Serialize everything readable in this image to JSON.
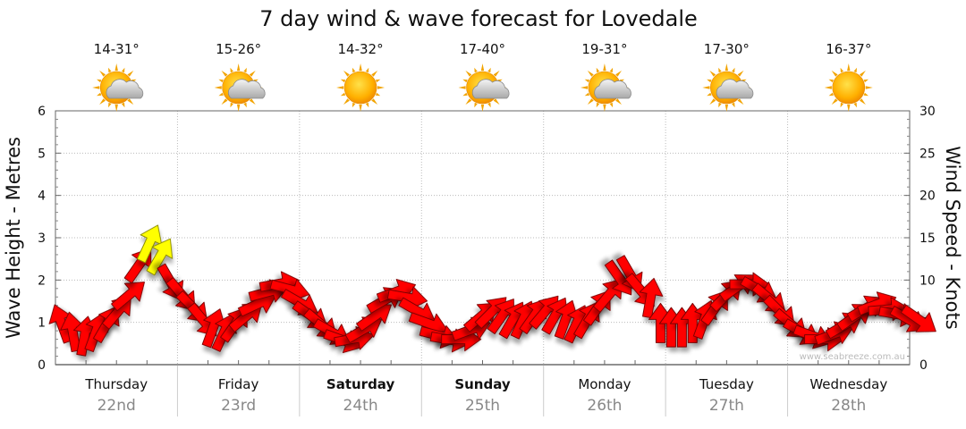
{
  "chart_data": {
    "type": "line",
    "title": "7 day wind & wave forecast for Lovedale",
    "ylabel_left": "Wave Height - Metres",
    "ylabel_right": "Wind Speed - Knots",
    "ylim_left": [
      0,
      6
    ],
    "ylim_right": [
      0,
      30
    ],
    "yticks_left": [
      "0",
      "1",
      "2",
      "3",
      "4",
      "5",
      "6"
    ],
    "yticks_right": [
      "0",
      "5",
      "10",
      "15",
      "20",
      "25",
      "30"
    ],
    "grid": true,
    "watermark": "www.seabreeze.com.au",
    "days": [
      {
        "name": "Thursday",
        "date": "22nd",
        "temp": "14-31°",
        "icon": "partly-cloudy-icon",
        "bold": false
      },
      {
        "name": "Friday",
        "date": "23rd",
        "temp": "15-26°",
        "icon": "partly-cloudy-icon",
        "bold": false
      },
      {
        "name": "Saturday",
        "date": "24th",
        "temp": "14-32°",
        "icon": "sunny-icon",
        "bold": true
      },
      {
        "name": "Sunday",
        "date": "25th",
        "temp": "17-40°",
        "icon": "partly-cloudy-icon",
        "bold": true
      },
      {
        "name": "Monday",
        "date": "26th",
        "temp": "19-31°",
        "icon": "partly-cloudy-icon",
        "bold": false
      },
      {
        "name": "Tuesday",
        "date": "27th",
        "temp": "17-30°",
        "icon": "partly-cloudy-icon",
        "bold": false
      },
      {
        "name": "Wednesday",
        "date": "28th",
        "temp": "16-37°",
        "icon": "sunny-icon",
        "bold": false
      }
    ],
    "series": [
      {
        "type": "wind-arrows",
        "unit": "knots",
        "points": [
          {
            "t": 0.0,
            "v": 4.5,
            "dir": 160
          },
          {
            "t": 0.25,
            "v": 3.5,
            "dir": 170
          },
          {
            "t": 0.5,
            "v": 3.0,
            "dir": 190
          },
          {
            "t": 0.75,
            "v": 3.5,
            "dir": 200
          },
          {
            "t": 1.0,
            "v": 4.5,
            "dir": 210
          },
          {
            "t": 1.25,
            "v": 6.0,
            "dir": 220
          },
          {
            "t": 1.5,
            "v": 8.0,
            "dir": 230
          },
          {
            "t": 1.75,
            "v": 11.5,
            "dir": 215
          },
          {
            "t": 2.0,
            "v": 14.0,
            "dir": 205,
            "highlight": true
          },
          {
            "t": 2.25,
            "v": 12.5,
            "dir": 210,
            "highlight": true
          },
          {
            "t": 2.5,
            "v": 10.0,
            "dir": 330
          },
          {
            "t": 2.75,
            "v": 8.5,
            "dir": 320
          },
          {
            "t": 3.0,
            "v": 7.0,
            "dir": 315
          },
          {
            "t": 3.25,
            "v": 5.5,
            "dir": 320
          },
          {
            "t": 3.5,
            "v": 4.0,
            "dir": 200
          },
          {
            "t": 3.75,
            "v": 3.5,
            "dir": 205
          },
          {
            "t": 4.0,
            "v": 4.5,
            "dir": 215
          },
          {
            "t": 4.25,
            "v": 5.5,
            "dir": 230
          },
          {
            "t": 4.5,
            "v": 7.0,
            "dir": 245
          },
          {
            "t": 4.75,
            "v": 8.5,
            "dir": 255
          },
          {
            "t": 5.0,
            "v": 9.5,
            "dir": 260
          },
          {
            "t": 5.25,
            "v": 9.0,
            "dir": 285
          },
          {
            "t": 5.5,
            "v": 7.5,
            "dir": 300
          },
          {
            "t": 5.75,
            "v": 6.0,
            "dir": 305
          },
          {
            "t": 6.0,
            "v": 5.0,
            "dir": 310
          },
          {
            "t": 6.25,
            "v": 4.0,
            "dir": 300
          },
          {
            "t": 6.5,
            "v": 3.0,
            "dir": 290
          },
          {
            "t": 6.75,
            "v": 3.0,
            "dir": 260
          },
          {
            "t": 7.0,
            "v": 4.0,
            "dir": 240
          },
          {
            "t": 7.25,
            "v": 5.5,
            "dir": 235
          },
          {
            "t": 7.5,
            "v": 7.5,
            "dir": 240
          },
          {
            "t": 7.75,
            "v": 8.5,
            "dir": 250
          },
          {
            "t": 8.0,
            "v": 8.0,
            "dir": 280
          },
          {
            "t": 8.25,
            "v": 6.5,
            "dir": 300
          },
          {
            "t": 8.5,
            "v": 5.0,
            "dir": 290
          },
          {
            "t": 8.75,
            "v": 3.5,
            "dir": 285
          },
          {
            "t": 9.0,
            "v": 3.0,
            "dir": 280
          },
          {
            "t": 9.25,
            "v": 3.0,
            "dir": 270
          },
          {
            "t": 9.5,
            "v": 4.0,
            "dir": 250
          },
          {
            "t": 9.75,
            "v": 5.5,
            "dir": 230
          },
          {
            "t": 10.0,
            "v": 6.0,
            "dir": 225
          },
          {
            "t": 10.25,
            "v": 5.5,
            "dir": 215
          },
          {
            "t": 10.5,
            "v": 5.0,
            "dir": 210
          },
          {
            "t": 10.75,
            "v": 5.0,
            "dir": 205
          },
          {
            "t": 11.0,
            "v": 5.5,
            "dir": 215
          },
          {
            "t": 11.25,
            "v": 6.0,
            "dir": 220
          },
          {
            "t": 11.5,
            "v": 5.5,
            "dir": 210
          },
          {
            "t": 11.75,
            "v": 5.0,
            "dir": 200
          },
          {
            "t": 12.0,
            "v": 4.5,
            "dir": 205
          },
          {
            "t": 12.25,
            "v": 5.0,
            "dir": 210
          },
          {
            "t": 12.5,
            "v": 6.5,
            "dir": 215
          },
          {
            "t": 12.75,
            "v": 8.0,
            "dir": 220
          },
          {
            "t": 13.0,
            "v": 10.5,
            "dir": 325
          },
          {
            "t": 13.25,
            "v": 11.0,
            "dir": 330
          },
          {
            "t": 13.5,
            "v": 9.0,
            "dir": 320
          },
          {
            "t": 13.75,
            "v": 7.5,
            "dir": 190
          },
          {
            "t": 14.0,
            "v": 4.5,
            "dir": 180
          },
          {
            "t": 14.25,
            "v": 4.0,
            "dir": 180
          },
          {
            "t": 14.5,
            "v": 4.0,
            "dir": 180
          },
          {
            "t": 14.75,
            "v": 4.5,
            "dir": 180
          },
          {
            "t": 15.0,
            "v": 5.0,
            "dir": 200
          },
          {
            "t": 15.25,
            "v": 6.5,
            "dir": 215
          },
          {
            "t": 15.5,
            "v": 8.0,
            "dir": 225
          },
          {
            "t": 15.75,
            "v": 9.0,
            "dir": 235
          },
          {
            "t": 16.0,
            "v": 9.5,
            "dir": 270
          },
          {
            "t": 16.25,
            "v": 9.0,
            "dir": 300
          },
          {
            "t": 16.5,
            "v": 8.0,
            "dir": 310
          },
          {
            "t": 16.75,
            "v": 6.5,
            "dir": 315
          },
          {
            "t": 17.0,
            "v": 5.0,
            "dir": 310
          },
          {
            "t": 17.25,
            "v": 4.0,
            "dir": 300
          },
          {
            "t": 17.5,
            "v": 3.5,
            "dir": 290
          },
          {
            "t": 17.75,
            "v": 3.0,
            "dir": 270
          },
          {
            "t": 18.0,
            "v": 3.5,
            "dir": 250
          },
          {
            "t": 18.25,
            "v": 4.5,
            "dir": 240
          },
          {
            "t": 18.5,
            "v": 5.5,
            "dir": 235
          },
          {
            "t": 18.75,
            "v": 6.5,
            "dir": 240
          },
          {
            "t": 19.0,
            "v": 7.0,
            "dir": 250
          },
          {
            "t": 19.25,
            "v": 6.5,
            "dir": 265
          },
          {
            "t": 19.5,
            "v": 6.0,
            "dir": 280
          },
          {
            "t": 19.75,
            "v": 5.5,
            "dir": 300
          },
          {
            "t": 20.0,
            "v": 5.5,
            "dir": 305
          }
        ]
      }
    ]
  }
}
